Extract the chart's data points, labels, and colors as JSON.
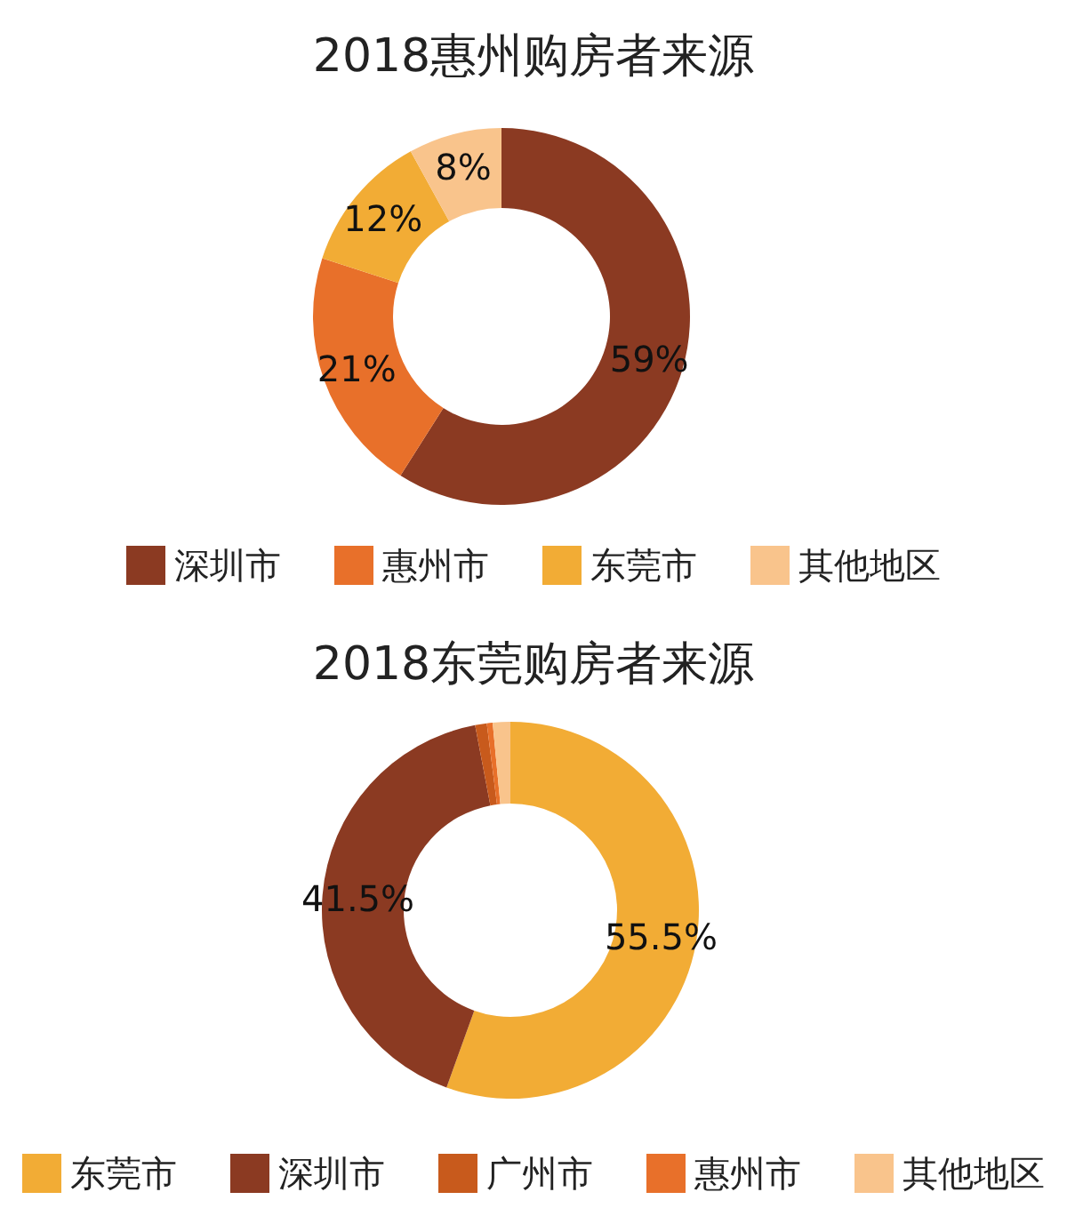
{
  "chart_data": [
    {
      "type": "donut",
      "title": "2018惠州购房者来源",
      "categories": [
        "深圳市",
        "惠州市",
        "东莞市",
        "其他地区"
      ],
      "values": [
        59,
        21,
        12,
        8
      ],
      "colors": [
        "#8b3a22",
        "#e8702a",
        "#f2ac35",
        "#f9c48c"
      ],
      "value_labels": [
        "59%",
        "21%",
        "12%",
        "8%"
      ],
      "legend": "bottom"
    },
    {
      "type": "donut",
      "title": "2018东莞购房者来源",
      "categories": [
        "东莞市",
        "深圳市",
        "广州市",
        "惠州市",
        "其他地区"
      ],
      "values": [
        55.5,
        41.5,
        1,
        0.5,
        1.5
      ],
      "colors": [
        "#f2ac35",
        "#8b3a22",
        "#c85a1c",
        "#e8702a",
        "#f9c48c"
      ],
      "value_labels": [
        "55.5%",
        "41.5%",
        null,
        null,
        null
      ],
      "legend": "bottom"
    }
  ]
}
